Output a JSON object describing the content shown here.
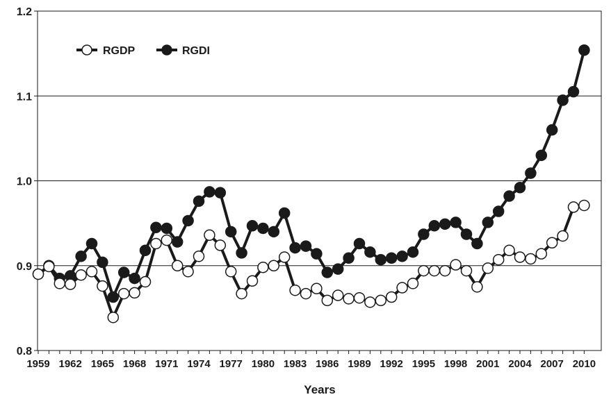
{
  "chart_data": {
    "type": "line",
    "title": "",
    "xlabel": "Years",
    "ylabel": "",
    "xlim": [
      1959,
      2010
    ],
    "ylim": [
      0.8,
      1.2
    ],
    "yticks": [
      "0.8",
      "0.9",
      "1.0",
      "1.1",
      "1.2"
    ],
    "xticks": [
      "1959",
      "1962",
      "1965",
      "1968",
      "1971",
      "1974",
      "1977",
      "1980",
      "1983",
      "1986",
      "1989",
      "1992",
      "1995",
      "1998",
      "2001",
      "2004",
      "2007",
      "2010"
    ],
    "grid": "horizontal",
    "legend": "top-left",
    "x": [
      1959,
      1960,
      1961,
      1962,
      1963,
      1964,
      1965,
      1966,
      1967,
      1968,
      1969,
      1970,
      1971,
      1972,
      1973,
      1974,
      1975,
      1976,
      1977,
      1978,
      1979,
      1980,
      1981,
      1982,
      1983,
      1984,
      1985,
      1986,
      1987,
      1988,
      1989,
      1990,
      1991,
      1992,
      1993,
      1994,
      1995,
      1996,
      1997,
      1998,
      1999,
      2000,
      2001,
      2002,
      2003,
      2004,
      2005,
      2006,
      2007,
      2008,
      2009,
      2010
    ],
    "series": [
      {
        "name": "RGDP",
        "marker": "open-circle",
        "color": "#1a1a1a",
        "values": [
          0.89,
          0.899,
          0.879,
          0.878,
          0.889,
          0.893,
          0.876,
          0.839,
          0.867,
          0.868,
          0.881,
          0.926,
          0.93,
          0.9,
          0.893,
          0.911,
          0.936,
          0.924,
          0.893,
          0.867,
          0.882,
          0.898,
          0.9,
          0.91,
          0.871,
          0.867,
          0.873,
          0.859,
          0.865,
          0.861,
          0.862,
          0.857,
          0.859,
          0.863,
          0.874,
          0.879,
          0.894,
          0.894,
          0.894,
          0.901,
          0.894,
          0.875,
          0.897,
          0.907,
          0.918,
          0.91,
          0.908,
          0.914,
          0.927,
          0.935,
          0.969,
          0.971
        ]
      },
      {
        "name": "RGDI",
        "marker": "filled-circle",
        "color": "#1a1a1a",
        "values": [
          0.89,
          0.9,
          0.885,
          0.888,
          0.911,
          0.926,
          0.904,
          0.863,
          0.892,
          0.885,
          0.918,
          0.945,
          0.944,
          0.928,
          0.953,
          0.976,
          0.987,
          0.986,
          0.94,
          0.915,
          0.947,
          0.944,
          0.94,
          0.962,
          0.921,
          0.923,
          0.914,
          0.892,
          0.896,
          0.909,
          0.926,
          0.916,
          0.907,
          0.909,
          0.911,
          0.916,
          0.937,
          0.947,
          0.949,
          0.951,
          0.937,
          0.926,
          0.951,
          0.964,
          0.982,
          0.992,
          1.009,
          1.03,
          1.06,
          1.095,
          1.105,
          1.154
        ]
      }
    ]
  }
}
